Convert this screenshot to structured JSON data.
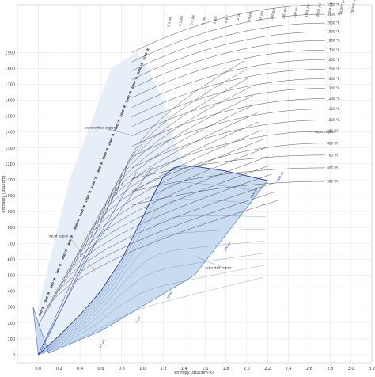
{
  "chart_data": {
    "type": "line",
    "title": "",
    "xlabel": "entropy (Btu/lbm·R)",
    "ylabel": "enthalpy (Btu/lbm)",
    "xlim": [
      -0.2,
      3.2
    ],
    "ylim": [
      -50,
      2200
    ],
    "x_ticks": [
      "0.0",
      "0.2",
      "0.4",
      "0.6",
      "0.8",
      "1.0",
      "1.2",
      "1.4",
      "1.6",
      "1.8",
      "2.0",
      "2.2",
      "2.4",
      "2.6",
      "2.8",
      "3.0",
      "3.2"
    ],
    "y_ticks": [
      "0",
      "100",
      "200",
      "300",
      "400",
      "500",
      "600",
      "700",
      "800",
      "900",
      "1000",
      "1100",
      "1200",
      "1300",
      "1400",
      "1500",
      "1600",
      "1700",
      "1800",
      "1900"
    ],
    "grid": true,
    "isobars": [
      "0.1 psi",
      "0.2 psi",
      "0.5 psi",
      "1 psi",
      "2 psi",
      "5 psi",
      "10 psi",
      "20 psi",
      "50 psi",
      "100 psi",
      "200 psi",
      "500 psi",
      "1000 psi",
      "2000 psi",
      "5000 psi",
      "10,000 psi",
      "20,000 psi"
    ],
    "isotherm_labels": [
      "2200 °R",
      "2100 °R",
      "2000 °R",
      "1900 °R",
      "1800 °R",
      "1700 °R",
      "1600 °R",
      "1500 °R",
      "1400 °R",
      "1300 °R",
      "1200 °R",
      "1100 °R",
      "1000 °R",
      "900 °R",
      "800 °R",
      "700 °R",
      "600 °R",
      "500 °R"
    ],
    "isotherm_h": [
      2200,
      2140,
      2085,
      2030,
      1975,
      1915,
      1855,
      1795,
      1735,
      1675,
      1610,
      1545,
      1475,
      1405,
      1330,
      1255,
      1175,
      1090
    ],
    "left_temp_labels": [
      "5100 °R",
      "3000 °R",
      "2800 °R",
      "2600 °R",
      "2400 °R",
      "2200 °R",
      "2000 °R",
      "1800 °R",
      "1600 °R",
      "1400 °R",
      "1200 °R",
      "1100 °R",
      "1000 °R",
      "900 °R",
      "800 °R",
      "700 °R",
      "600 °R",
      "500 °R",
      "400 °R"
    ],
    "sat_pressure_labels": [
      "0.1 psi",
      "1 psi",
      "10 psi",
      "100 psi",
      "1000 psi",
      "3000 psi"
    ],
    "saturation_dome": {
      "x": [
        0.0,
        0.2,
        0.4,
        0.6,
        0.8,
        1.0,
        1.1,
        1.2,
        1.3,
        1.4,
        1.5,
        1.6,
        1.7,
        1.8,
        1.9,
        2.0,
        2.1,
        2.2
      ],
      "y": [
        0,
        120,
        250,
        400,
        600,
        860,
        1000,
        1120,
        1175,
        1190,
        1185,
        1175,
        1165,
        1155,
        1140,
        1125,
        1110,
        1095
      ]
    },
    "annotations": [
      "supercritical region",
      "vapor region",
      "liquid region",
      "saturated region"
    ]
  }
}
